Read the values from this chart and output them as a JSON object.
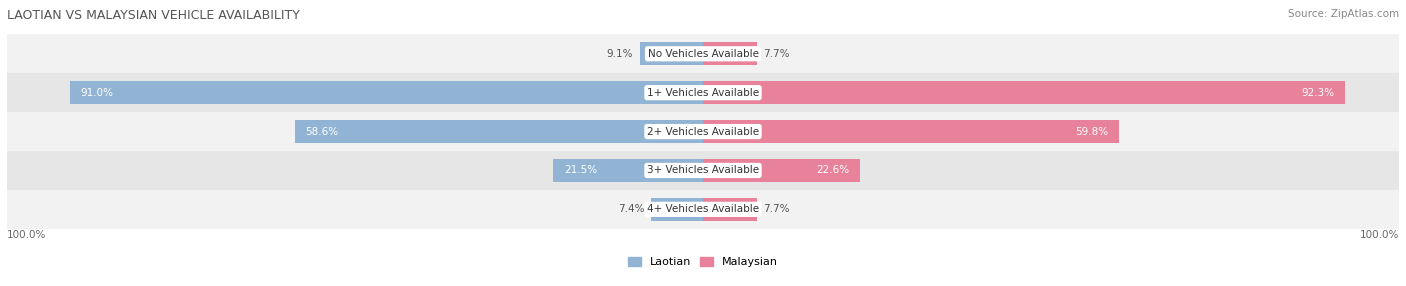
{
  "title": "LAOTIAN VS MALAYSIAN VEHICLE AVAILABILITY",
  "source": "Source: ZipAtlas.com",
  "categories": [
    "No Vehicles Available",
    "1+ Vehicles Available",
    "2+ Vehicles Available",
    "3+ Vehicles Available",
    "4+ Vehicles Available"
  ],
  "laotian": [
    9.1,
    91.0,
    58.6,
    21.5,
    7.4
  ],
  "malaysian": [
    7.7,
    92.3,
    59.8,
    22.6,
    7.7
  ],
  "laotian_color": "#92b4d4",
  "malaysian_color": "#e8829a",
  "row_bg_colors": [
    "#f2f2f2",
    "#e6e6e6"
  ],
  "max_value": 100.0,
  "bar_height": 0.6,
  "figsize": [
    14.06,
    2.86
  ],
  "dpi": 100,
  "title_fontsize": 9,
  "source_fontsize": 7.5,
  "label_fontsize": 7.5,
  "value_fontsize": 7.5,
  "inside_threshold": 15
}
